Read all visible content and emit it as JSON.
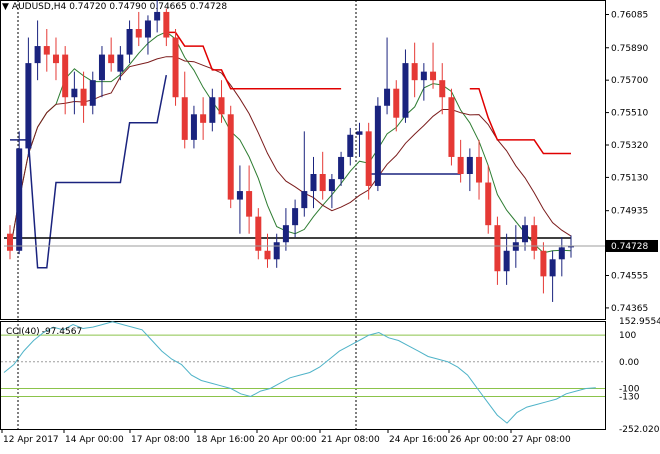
{
  "header": {
    "dropdown_icon": "triangle-down-icon",
    "symbol": "AUDUSD,H4",
    "open": "0.74720",
    "high": "0.74790",
    "low": "0.74665",
    "close": "0.74728"
  },
  "price_axis": {
    "labels": [
      "0.76085",
      "0.75890",
      "0.75700",
      "0.75510",
      "0.75320",
      "0.75130",
      "0.74935",
      "0.74555",
      "0.74365"
    ],
    "current_price": "0.74728"
  },
  "cci_panel": {
    "title": "CCI(40)",
    "value": "-97.4567",
    "axis_labels": [
      "152.9554",
      "100",
      "0.00",
      "-100",
      "-130",
      "-252.0202"
    ]
  },
  "time_axis": {
    "labels": [
      "12 Apr 2017",
      "14 Apr 00:00",
      "17 Apr 08:00",
      "18 Apr 16:00",
      "20 Apr 00:00",
      "21 Apr 08:00",
      "24 Apr 16:00",
      "26 Apr 00:00",
      "27 Apr 08:00"
    ]
  },
  "colors": {
    "bull": "#1a237e",
    "bear": "#e53935",
    "ma_fast": "#2e7d32",
    "ma_slow": "#7b1c1c",
    "stop_red": "#e00000",
    "stop_blue": "#1a237e",
    "cci_line": "#4fb3c8",
    "cci_level": "#8bc34a",
    "separator": "#000000"
  },
  "chart_data": [
    {
      "type": "candlestick",
      "title": "AUDUSD,H4",
      "y_range": [
        0.743,
        0.7617
      ],
      "y_ticks": [
        0.76085,
        0.7589,
        0.757,
        0.7551,
        0.7532,
        0.7513,
        0.74935,
        0.74555,
        0.74365
      ],
      "x_ticks": [
        "12 Apr 2017",
        "14 Apr 00:00",
        "17 Apr 08:00",
        "18 Apr 16:00",
        "20 Apr 00:00",
        "21 Apr 08:00",
        "24 Apr 16:00",
        "26 Apr 00:00",
        "27 Apr 08:00"
      ],
      "ohlc": [
        [
          0.748,
          0.7485,
          0.7465,
          0.747
        ],
        [
          0.747,
          0.754,
          0.7468,
          0.753
        ],
        [
          0.753,
          0.7595,
          0.7525,
          0.758
        ],
        [
          0.758,
          0.7605,
          0.757,
          0.759
        ],
        [
          0.759,
          0.76,
          0.7575,
          0.7585
        ],
        [
          0.7585,
          0.7595,
          0.757,
          0.758
        ],
        [
          0.7585,
          0.759,
          0.755,
          0.756
        ],
        [
          0.756,
          0.7575,
          0.755,
          0.7565
        ],
        [
          0.7565,
          0.7575,
          0.7545,
          0.7555
        ],
        [
          0.7555,
          0.7575,
          0.755,
          0.757
        ],
        [
          0.757,
          0.759,
          0.756,
          0.7585
        ],
        [
          0.7585,
          0.7595,
          0.7575,
          0.758
        ],
        [
          0.7575,
          0.759,
          0.757,
          0.7585
        ],
        [
          0.7585,
          0.7605,
          0.758,
          0.76
        ],
        [
          0.76,
          0.761,
          0.759,
          0.7595
        ],
        [
          0.7595,
          0.7608,
          0.7585,
          0.7605
        ],
        [
          0.7605,
          0.7617,
          0.7598,
          0.761
        ],
        [
          0.761,
          0.7612,
          0.759,
          0.7595
        ],
        [
          0.7595,
          0.76,
          0.7555,
          0.756
        ],
        [
          0.756,
          0.7575,
          0.753,
          0.7535
        ],
        [
          0.7535,
          0.7555,
          0.753,
          0.755
        ],
        [
          0.755,
          0.756,
          0.7535,
          0.7545
        ],
        [
          0.7545,
          0.7565,
          0.754,
          0.756
        ],
        [
          0.756,
          0.757,
          0.7545,
          0.755
        ],
        [
          0.755,
          0.7555,
          0.7495,
          0.75
        ],
        [
          0.75,
          0.752,
          0.748,
          0.7505
        ],
        [
          0.7505,
          0.752,
          0.748,
          0.749
        ],
        [
          0.749,
          0.7495,
          0.7465,
          0.747
        ],
        [
          0.747,
          0.748,
          0.746,
          0.7465
        ],
        [
          0.7465,
          0.748,
          0.746,
          0.7475
        ],
        [
          0.7475,
          0.7495,
          0.747,
          0.7485
        ],
        [
          0.7485,
          0.75,
          0.7478,
          0.7495
        ],
        [
          0.7495,
          0.754,
          0.749,
          0.7505
        ],
        [
          0.7505,
          0.7525,
          0.7495,
          0.7515
        ],
        [
          0.7515,
          0.7528,
          0.75,
          0.7505
        ],
        [
          0.7505,
          0.7515,
          0.7495,
          0.7512
        ],
        [
          0.7512,
          0.7528,
          0.7508,
          0.7525
        ],
        [
          0.7525,
          0.7542,
          0.752,
          0.7538
        ],
        [
          0.7538,
          0.7545,
          0.7525,
          0.754
        ],
        [
          0.754,
          0.7545,
          0.75,
          0.7508
        ],
        [
          0.7508,
          0.756,
          0.7505,
          0.7555
        ],
        [
          0.7555,
          0.7595,
          0.755,
          0.7565
        ],
        [
          0.7565,
          0.757,
          0.754,
          0.7548
        ],
        [
          0.7548,
          0.7588,
          0.7545,
          0.758
        ],
        [
          0.758,
          0.7592,
          0.756,
          0.757
        ],
        [
          0.757,
          0.758,
          0.7558,
          0.7575
        ],
        [
          0.7575,
          0.7592,
          0.7565,
          0.757
        ],
        [
          0.757,
          0.758,
          0.755,
          0.756
        ],
        [
          0.756,
          0.7565,
          0.752,
          0.7525
        ],
        [
          0.7525,
          0.7535,
          0.751,
          0.7515
        ],
        [
          0.7515,
          0.753,
          0.7505,
          0.7525
        ],
        [
          0.7525,
          0.7535,
          0.75,
          0.751
        ],
        [
          0.751,
          0.752,
          0.748,
          0.7485
        ],
        [
          0.7485,
          0.749,
          0.745,
          0.7458
        ],
        [
          0.7458,
          0.748,
          0.745,
          0.747
        ],
        [
          0.747,
          0.7485,
          0.746,
          0.7475
        ],
        [
          0.7475,
          0.749,
          0.747,
          0.7485
        ],
        [
          0.7485,
          0.749,
          0.7465,
          0.747
        ],
        [
          0.747,
          0.7475,
          0.7445,
          0.7455
        ],
        [
          0.7455,
          0.747,
          0.744,
          0.7465
        ],
        [
          0.7465,
          0.7478,
          0.7455,
          0.7472
        ],
        [
          0.7472,
          0.7479,
          0.7466,
          0.7473
        ]
      ]
    },
    {
      "type": "line",
      "title": "CCI(40)",
      "y_range": [
        -252.0202,
        152.9554
      ],
      "levels": [
        100,
        0,
        -100,
        -130
      ],
      "values": [
        -40,
        -10,
        40,
        80,
        110,
        130,
        120,
        140,
        125,
        130,
        140,
        150,
        140,
        130,
        120,
        80,
        40,
        10,
        -10,
        -50,
        -70,
        -80,
        -90,
        -100,
        -120,
        -130,
        -110,
        -100,
        -80,
        -60,
        -50,
        -40,
        -20,
        10,
        40,
        60,
        80,
        100,
        110,
        90,
        80,
        60,
        40,
        20,
        10,
        0,
        -20,
        -50,
        -100,
        -150,
        -200,
        -230,
        -190,
        -170,
        -160,
        -150,
        -140,
        -120,
        -110,
        -100,
        -97
      ]
    }
  ]
}
